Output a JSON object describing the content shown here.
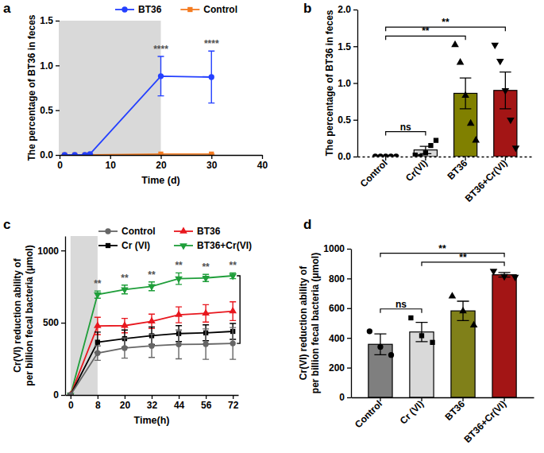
{
  "chart_data": [
    {
      "type": "line",
      "title": "a",
      "x_label": "Time (d)",
      "y_label": "The percentage of BT36 in feces",
      "x": [
        1,
        3,
        5,
        6,
        20,
        30
      ],
      "xlim": [
        0,
        40
      ],
      "xticks": [
        0,
        10,
        20,
        30,
        40
      ],
      "ylim": [
        0,
        1.5
      ],
      "yticks": [
        {
          "value": 0,
          "label": "0.0"
        },
        {
          "value": 0.5,
          "label": "0.5"
        },
        {
          "value": 1,
          "label": "1.0"
        },
        {
          "value": 1.5,
          "label": "1.5"
        }
      ],
      "legend": "top",
      "shaded_range": [
        0,
        20
      ],
      "series": [
        {
          "name": "BT36",
          "color": "#2440ff",
          "marker": "circle",
          "values": [
            0,
            0,
            0,
            0.01,
            0.88,
            0.87
          ],
          "errors": [
            0,
            0,
            0,
            0,
            0.22,
            0.29
          ]
        },
        {
          "name": "Control",
          "color": "#f47b20",
          "marker": "square",
          "values": [
            0,
            0,
            0,
            0,
            0.01,
            0.01
          ],
          "errors": [
            0,
            0,
            0,
            0,
            0,
            0
          ]
        }
      ],
      "annotations": [
        {
          "x": 20,
          "text": "****"
        },
        {
          "x": 30,
          "text": "****"
        }
      ]
    },
    {
      "type": "bar",
      "title": "b",
      "y_label": "The percentage of BT36 in feces",
      "categories": [
        "Control",
        "Cr(VI)",
        "BT36",
        "BT36+Cr(VI)"
      ],
      "values": [
        0,
        0.09,
        0.86,
        0.9
      ],
      "errors": [
        0,
        0.05,
        0.21,
        0.25
      ],
      "colors": [
        "#808080",
        "#d9d9d9",
        "#808000",
        "#a31515"
      ],
      "ylim": [
        0,
        2
      ],
      "yticks": [
        {
          "value": 0,
          "label": "0.0"
        },
        {
          "value": 0.5,
          "label": "0.5"
        },
        {
          "value": 1,
          "label": "1.0"
        },
        {
          "value": 1.5,
          "label": "1.5"
        },
        {
          "value": 2,
          "label": "2.0"
        }
      ],
      "point_sets": [
        {
          "marker": "circle",
          "values": [
            0,
            0,
            0,
            0,
            0
          ]
        },
        {
          "marker": "square",
          "values": [
            0.02,
            0,
            0.05,
            0.15,
            0.22
          ]
        },
        {
          "marker": "triangle",
          "values": [
            1.52,
            1.28,
            0.83,
            0.45,
            0.22
          ]
        },
        {
          "marker": "triangle-down",
          "values": [
            1.52,
            1.3,
            0.9,
            0.5,
            0.12
          ]
        }
      ],
      "comparisons": [
        {
          "from": 0,
          "to": 1,
          "label": "ns"
        },
        {
          "from": 0,
          "to": 2,
          "label": "**"
        },
        {
          "from": 0,
          "to": 3,
          "label": "**"
        }
      ]
    },
    {
      "type": "line",
      "title": "c",
      "x_label": "Time(h)",
      "y_label": [
        "Cr(VI) reduction ability of",
        "per billion fecal bacteria (μmol)"
      ],
      "categories": [
        0,
        8,
        20,
        32,
        44,
        56,
        72
      ],
      "ylim": [
        0,
        1100
      ],
      "yticks": [
        0,
        500,
        1000
      ],
      "legend": "top",
      "shaded_range": [
        0,
        8
      ],
      "series": [
        {
          "name": "Control",
          "color": "#666666",
          "marker": "circle",
          "values": [
            0,
            290,
            325,
            340,
            350,
            352,
            357
          ],
          "errors": [
            0,
            50,
            70,
            80,
            100,
            105,
            110
          ]
        },
        {
          "name": "Cr (VI)",
          "color": "#000000",
          "marker": "square",
          "values": [
            0,
            365,
            390,
            410,
            425,
            430,
            440
          ],
          "errors": [
            0,
            70,
            60,
            60,
            55,
            55,
            55
          ]
        },
        {
          "name": "BT36",
          "color": "#e8171e",
          "marker": "triangle",
          "values": [
            0,
            478,
            480,
            510,
            555,
            565,
            580
          ],
          "errors": [
            0,
            60,
            50,
            50,
            55,
            60,
            65
          ]
        },
        {
          "name": "BT36+Cr(VI)",
          "color": "#1f9e3a",
          "marker": "triangle-down",
          "values": [
            0,
            695,
            730,
            752,
            805,
            810,
            825
          ],
          "errors": [
            0,
            25,
            30,
            30,
            40,
            25,
            20
          ]
        }
      ],
      "annotations": [
        {
          "x": 8,
          "text": "**"
        },
        {
          "x": 20,
          "text": "**"
        },
        {
          "x": 32,
          "text": "**"
        },
        {
          "x": 44,
          "text": "**"
        },
        {
          "x": 56,
          "text": "**"
        },
        {
          "x": 72,
          "text": "**"
        }
      ]
    },
    {
      "type": "bar",
      "title": "d",
      "y_label": [
        "Cr(VI) reduction ability of",
        "per billion fecal bacteria (μmol)"
      ],
      "categories": [
        "Control",
        "Cr (VI)",
        "BT36",
        "BT36+Cr(VI)"
      ],
      "values": [
        357,
        440,
        582,
        825
      ],
      "errors": [
        70,
        65,
        65,
        15
      ],
      "colors": [
        "#7f7f7f",
        "#d9d9d9",
        "#808019",
        "#a31515"
      ],
      "ylim": [
        0,
        1000
      ],
      "yticks": [
        0,
        200,
        400,
        600,
        800,
        1000
      ],
      "point_sets": [
        {
          "marker": "circle",
          "values": [
            445,
            340,
            285
          ]
        },
        {
          "marker": "square",
          "values": [
            535,
            415,
            370
          ]
        },
        {
          "marker": "triangle",
          "values": [
            680,
            580,
            485
          ]
        },
        {
          "marker": "triangle-down",
          "values": [
            850,
            815,
            810
          ]
        }
      ],
      "comparisons": [
        {
          "from": 0,
          "to": 1,
          "label": "ns"
        },
        {
          "from": 1,
          "to": 3,
          "label": "**"
        },
        {
          "from": 0,
          "to": 3,
          "label": "**"
        }
      ]
    }
  ]
}
